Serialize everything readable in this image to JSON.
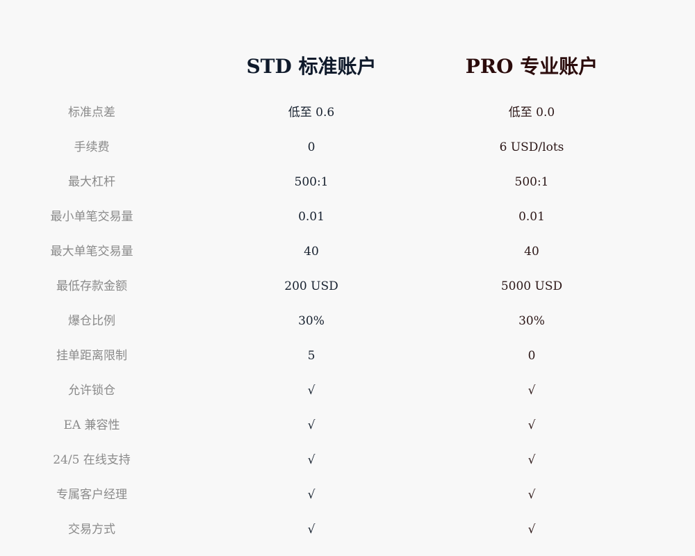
{
  "headers": {
    "std": "STD 标准账户",
    "pro": "PRO 专业账户"
  },
  "colors": {
    "std": "#0f1a2b",
    "pro": "#2b0c0c",
    "label": "#8a8a8a",
    "background": "#f8f8f8"
  },
  "rows": [
    {
      "label": "标准点差",
      "std": "低至 0.6",
      "pro": "低至 0.0"
    },
    {
      "label": "手续费",
      "std": "0",
      "pro": "6 USD/lots"
    },
    {
      "label": "最大杠杆",
      "std": "500:1",
      "pro": "500:1"
    },
    {
      "label": "最小单笔交易量",
      "std": "0.01",
      "pro": "0.01"
    },
    {
      "label": "最大单笔交易量",
      "std": "40",
      "pro": "40"
    },
    {
      "label": "最低存款金额",
      "std": "200 USD",
      "pro": "5000 USD"
    },
    {
      "label": "爆仓比例",
      "std": "30%",
      "pro": "30%"
    },
    {
      "label": "挂单距离限制",
      "std": "5",
      "pro": "0"
    },
    {
      "label": "允许锁仓",
      "std": "√",
      "pro": "√"
    },
    {
      "label": "EA 兼容性",
      "std": "√",
      "pro": "√"
    },
    {
      "label": "24/5 在线支持",
      "std": "√",
      "pro": "√"
    },
    {
      "label": "专属客户经理",
      "std": "√",
      "pro": "√"
    },
    {
      "label": "交易方式",
      "std": "√",
      "pro": "√"
    }
  ]
}
